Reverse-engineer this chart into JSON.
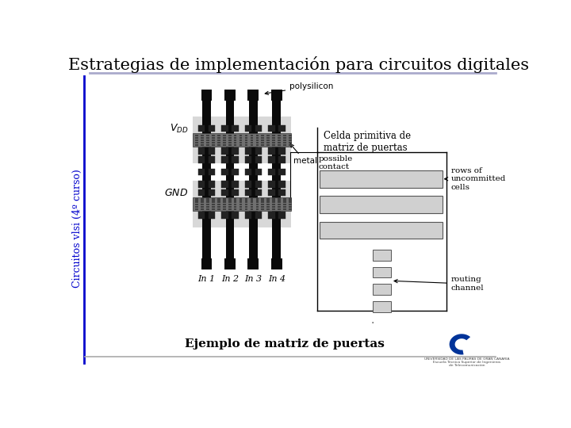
{
  "title": "Estrategias de implementación para circuitos digitales",
  "subtitle_left": "Circuitos vlsi (4º curso)",
  "caption": "Ejemplo de matriz de puertas",
  "label_celda": "Celda primitiva de\nmatriz de puertas",
  "label_polysilicon": "polysilicon",
  "label_metal": "metal",
  "label_possible": "possible\ncontact",
  "label_rows": "rows of\nuncommitted\ncells",
  "label_routing": "routing\nchannel",
  "label_in1": "In 1",
  "label_in2": "In 2",
  "label_in3": "In 3",
  "label_in4": "In 4",
  "bg_color": "#ffffff",
  "title_color": "#000000",
  "sidebar_color": "#0000cc",
  "dark_color": "#111111",
  "light_gray": "#cccccc",
  "mid_gray": "#aaaaaa",
  "rail_gray": "#888888",
  "cell_bg": "#d8d8d8",
  "contact_dark": "#222222",
  "metal_hatch": "#909090"
}
